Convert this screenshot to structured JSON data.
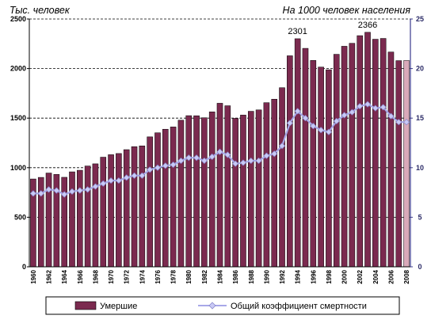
{
  "chart_data": {
    "type": "bar",
    "title_left": "Тыс. человек",
    "title_right": "На 1000 человек населения",
    "colors": {
      "bar": "#7b2a4f",
      "line": "#a8a8e8",
      "marker": "#c9c9f5",
      "last_bar": "#d9a9b9",
      "y2_axis": "#3a3a8c"
    },
    "ylim": [
      0,
      2500
    ],
    "yticks": [
      "0",
      "500",
      "1000",
      "1500",
      "2000",
      "2500"
    ],
    "y2lim": [
      0,
      25
    ],
    "y2ticks": [
      "0",
      "5",
      "10",
      "15",
      "20",
      "25"
    ],
    "grid": "dashed-horizontal",
    "legend_position": "bottom",
    "years": [
      1960,
      1961,
      1962,
      1963,
      1964,
      1965,
      1966,
      1967,
      1968,
      1969,
      1970,
      1971,
      1972,
      1973,
      1974,
      1975,
      1976,
      1977,
      1978,
      1979,
      1980,
      1981,
      1982,
      1983,
      1984,
      1985,
      1986,
      1987,
      1988,
      1989,
      1990,
      1991,
      1992,
      1993,
      1994,
      1995,
      1996,
      1997,
      1998,
      1999,
      2000,
      2001,
      2002,
      2003,
      2004,
      2005,
      2006,
      2007,
      2008
    ],
    "xtick_labels": [
      "1960",
      "1962",
      "1964",
      "1966",
      "1968",
      "1970",
      "1972",
      "1974",
      "1976",
      "1978",
      "1980",
      "1982",
      "1984",
      "1986",
      "1988",
      "1990",
      "1992",
      "1994",
      "1996",
      "1998",
      "2000",
      "2002",
      "2004",
      "2006",
      "2008"
    ],
    "series": [
      {
        "name": "Умершие",
        "axis": "left",
        "values": [
          886,
          902,
          946,
          932,
          903,
          958,
          974,
          1017,
          1039,
          1106,
          1131,
          1143,
          1182,
          1212,
          1220,
          1311,
          1352,
          1388,
          1411,
          1479,
          1525,
          1524,
          1504,
          1563,
          1650,
          1625,
          1498,
          1531,
          1569,
          1583,
          1656,
          1691,
          1807,
          2129,
          2301,
          2204,
          2082,
          2015,
          1988,
          2144,
          2225,
          2255,
          2332,
          2366,
          2296,
          2304,
          2167,
          2080,
          2081
        ]
      },
      {
        "name": "Общий коэффициент смертности",
        "axis": "right",
        "values": [
          7.4,
          7.4,
          7.8,
          7.7,
          7.3,
          7.6,
          7.7,
          7.8,
          8.1,
          8.4,
          8.7,
          8.7,
          9.0,
          9.2,
          9.2,
          9.8,
          10.0,
          10.2,
          10.3,
          10.7,
          11.0,
          11.0,
          10.7,
          11.1,
          11.6,
          11.3,
          10.4,
          10.5,
          10.7,
          10.7,
          11.2,
          11.4,
          12.2,
          14.5,
          15.7,
          15.0,
          14.2,
          13.8,
          13.6,
          14.7,
          15.3,
          15.6,
          16.2,
          16.4,
          16.0,
          16.1,
          15.2,
          14.6,
          14.6
        ]
      }
    ],
    "data_labels": [
      {
        "year": 1994,
        "text": "2301"
      },
      {
        "year": 2003,
        "text": "2366"
      }
    ]
  }
}
